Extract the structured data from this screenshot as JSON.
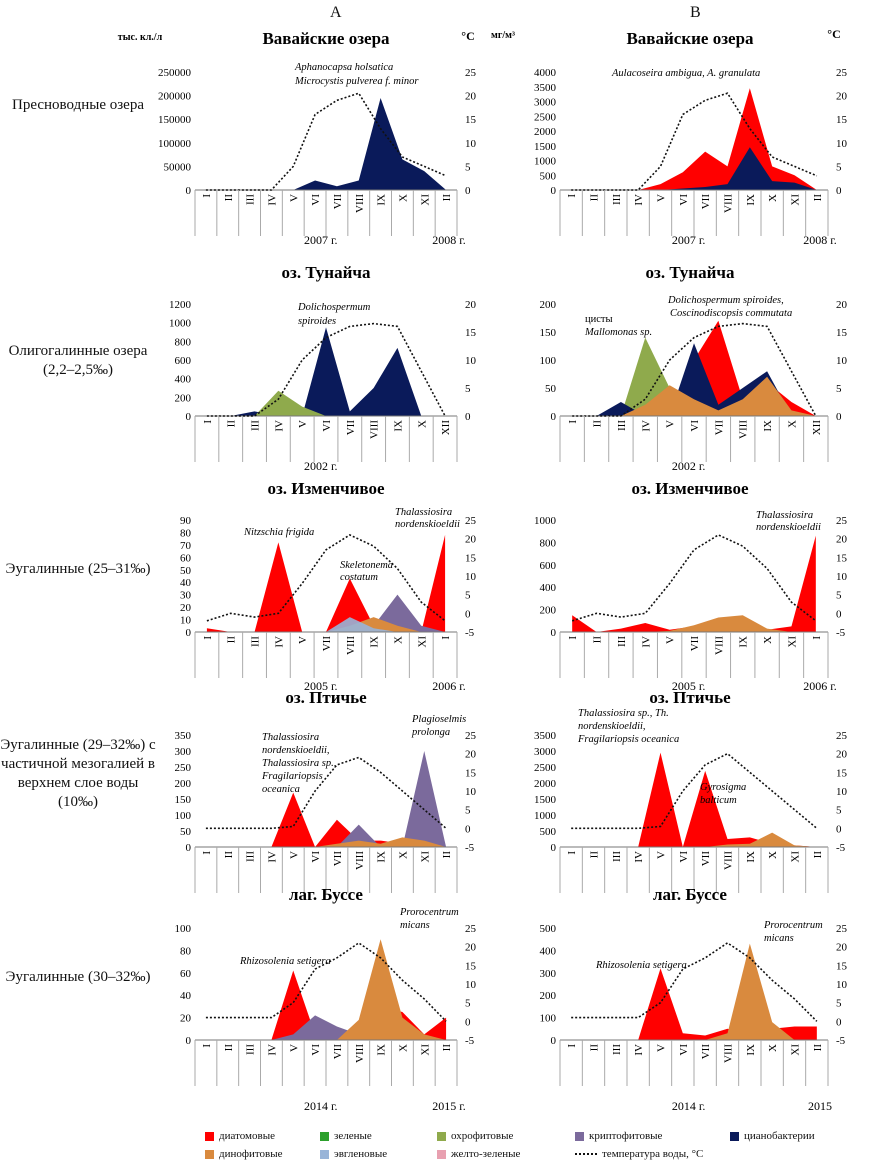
{
  "columns": [
    "A",
    "B"
  ],
  "units": {
    "left": "тыс. кл./л",
    "right": "мг/м³",
    "temp": "°C"
  },
  "row_labels": [
    "Пресноводные озера",
    "Олигогалинные озера (2,2–2,5‰)",
    "Эугалинные (25–31‰)",
    "Эугалинные (29–32‰) с частичной мезогалией в верхнем слое воды (10‰)",
    "Эугалинные (30–32‰)"
  ],
  "colors": {
    "diatoms": "#ff0000",
    "green": "#2ca02c",
    "ochrophytes": "#8faa4c",
    "cryptophytes": "#7b6a9c",
    "cyanobacteria": "#0a1a5a",
    "dinophytes": "#d98a3e",
    "euglenophytes": "#98b4d8",
    "yellowgreen": "#e8a0b0",
    "temperature": "#111111"
  },
  "legend": [
    {
      "key": "diatoms",
      "label": "диатомовые",
      "type": "box"
    },
    {
      "key": "green",
      "label": "зеленые",
      "type": "box"
    },
    {
      "key": "ochrophytes",
      "label": "охрофитовые",
      "type": "box"
    },
    {
      "key": "cryptophytes",
      "label": "криптофитовые",
      "type": "box"
    },
    {
      "key": "cyanobacteria",
      "label": "цианобактерии",
      "type": "box"
    },
    {
      "key": "dinophytes",
      "label": "динофитовые",
      "type": "box"
    },
    {
      "key": "euglenophytes",
      "label": "эвгленовые",
      "type": "box"
    },
    {
      "key": "yellowgreen",
      "label": "желто-зеленые",
      "type": "box"
    },
    {
      "key": "temperature",
      "label": "температура воды, °C",
      "type": "line"
    }
  ],
  "chart_data": [
    {
      "id": "A1",
      "type": "area",
      "title": "Вавайские озера",
      "ylabel": "тыс. кл./л",
      "y2label": "°C",
      "ylim": [
        0,
        250000
      ],
      "yticks": [
        0,
        50000,
        100000,
        150000,
        200000,
        250000
      ],
      "y2lim": [
        0,
        25
      ],
      "y2ticks": [
        0,
        5,
        10,
        15,
        20,
        25
      ],
      "categories": [
        "I",
        "II",
        "III",
        "IV",
        "V",
        "VI",
        "VII",
        "VIII",
        "IX",
        "X",
        "XI",
        "II"
      ],
      "year_labels": [
        "2007 г.",
        "2008 г."
      ],
      "series": [
        {
          "key": "cyanobacteria",
          "values": [
            0,
            0,
            0,
            0,
            0,
            20000,
            8000,
            20000,
            195000,
            65000,
            40000,
            0
          ]
        }
      ],
      "temperature": [
        0,
        0,
        0,
        0,
        5,
        16,
        19,
        20.5,
        13,
        7,
        5,
        3
      ],
      "annotations": [
        "Aphanocapsa holsatica",
        "Microcystis pulverea f. minor"
      ]
    },
    {
      "id": "B1",
      "type": "area",
      "title": "Вавайские озера",
      "ylabel": "мг/м³",
      "y2label": "°C",
      "ylim": [
        0,
        4000
      ],
      "yticks": [
        0,
        500,
        1000,
        1500,
        2000,
        2500,
        3000,
        3500,
        4000
      ],
      "y2lim": [
        0,
        25
      ],
      "y2ticks": [
        0,
        5,
        10,
        15,
        20,
        25
      ],
      "categories": [
        "I",
        "II",
        "III",
        "IV",
        "V",
        "VI",
        "VII",
        "VIII",
        "IX",
        "X",
        "XI",
        "II"
      ],
      "year_labels": [
        "2007 г.",
        "2008 г."
      ],
      "series": [
        {
          "key": "diatoms",
          "values": [
            0,
            0,
            0,
            0,
            200,
            600,
            1300,
            800,
            3450,
            800,
            500,
            0
          ]
        },
        {
          "key": "cyanobacteria",
          "values": [
            0,
            0,
            0,
            0,
            0,
            50,
            100,
            200,
            1450,
            300,
            250,
            0
          ]
        }
      ],
      "temperature": [
        0,
        0,
        0,
        0,
        5,
        16,
        19,
        20.5,
        13,
        7,
        5,
        3
      ],
      "annotations": [
        "Aulacoseira ambigua, A. granulata"
      ]
    },
    {
      "id": "A2",
      "type": "area",
      "title": "оз. Тунайча",
      "ylabel": "",
      "y2label": "",
      "ylim": [
        0,
        1200
      ],
      "yticks": [
        0,
        200,
        400,
        600,
        800,
        1000,
        1200
      ],
      "y2lim": [
        0,
        20
      ],
      "y2ticks": [
        0,
        5,
        10,
        15,
        20
      ],
      "categories": [
        "I",
        "II",
        "III",
        "IV",
        "V",
        "VI",
        "VII",
        "VIII",
        "IX",
        "X",
        "XII"
      ],
      "year_labels": [
        "2002 г."
      ],
      "series": [
        {
          "key": "cyanobacteria",
          "values": [
            0,
            0,
            50,
            0,
            0,
            950,
            50,
            300,
            730,
            0,
            0
          ]
        },
        {
          "key": "ochrophytes",
          "values": [
            0,
            0,
            0,
            270,
            100,
            0,
            0,
            0,
            0,
            0,
            0
          ]
        }
      ],
      "temperature": [
        0,
        0,
        0,
        3,
        10,
        14,
        16,
        16.5,
        16,
        8,
        0
      ],
      "annotations": [
        "Dolichospermum",
        "spiroides"
      ]
    },
    {
      "id": "B2",
      "type": "area",
      "title": "оз. Тунайча",
      "ylabel": "",
      "y2label": "",
      "ylim": [
        0,
        200
      ],
      "yticks": [
        0,
        50,
        100,
        150,
        200
      ],
      "y2lim": [
        0,
        20
      ],
      "y2ticks": [
        0,
        5,
        10,
        15,
        20
      ],
      "categories": [
        "I",
        "II",
        "III",
        "IV",
        "V",
        "VI",
        "VII",
        "VIII",
        "IX",
        "X",
        "XII"
      ],
      "year_labels": [
        "2002 г."
      ],
      "series": [
        {
          "key": "ochrophytes",
          "values": [
            0,
            0,
            0,
            140,
            50,
            0,
            0,
            0,
            0,
            0,
            0
          ]
        },
        {
          "key": "diatoms",
          "values": [
            0,
            0,
            0,
            0,
            0,
            100,
            170,
            30,
            60,
            25,
            0
          ]
        },
        {
          "key": "cyanobacteria",
          "values": [
            0,
            0,
            25,
            0,
            0,
            130,
            20,
            50,
            80,
            0,
            0
          ]
        },
        {
          "key": "dinophytes",
          "values": [
            0,
            0,
            0,
            20,
            55,
            30,
            10,
            30,
            70,
            10,
            0
          ]
        }
      ],
      "temperature": [
        0,
        0,
        0,
        3,
        10,
        14,
        16,
        16.5,
        16,
        8,
        0
      ],
      "annotations": [
        "цисты",
        "Mallomonas sp.",
        "Dolichospermum spiroides,",
        "Coscinodiscopsis commutata"
      ]
    },
    {
      "id": "A3",
      "type": "area",
      "title": "оз. Изменчивое",
      "ylabel": "",
      "y2label": "",
      "ylim": [
        0,
        90
      ],
      "yticks": [
        0,
        10,
        20,
        30,
        40,
        50,
        60,
        70,
        80,
        90
      ],
      "y2lim": [
        -5,
        25
      ],
      "y2ticks": [
        -5,
        0,
        5,
        10,
        15,
        20,
        25
      ],
      "categories": [
        "I",
        "II",
        "III",
        "IV",
        "V",
        "VII",
        "VIII",
        "IX",
        "X",
        "XI",
        "I"
      ],
      "year_labels": [
        "2005 г.",
        "2006 г."
      ],
      "series": [
        {
          "key": "diatoms",
          "values": [
            3,
            0,
            0,
            72,
            0,
            0,
            43,
            5,
            0,
            0,
            78
          ]
        },
        {
          "key": "cryptophytes",
          "values": [
            0,
            0,
            0,
            0,
            0,
            0,
            3,
            5,
            30,
            5,
            0
          ]
        },
        {
          "key": "dinophytes",
          "values": [
            0,
            0,
            0,
            0,
            0,
            0,
            5,
            12,
            5,
            0,
            0
          ]
        },
        {
          "key": "euglenophytes",
          "values": [
            0,
            0,
            0,
            0,
            0,
            0,
            12,
            3,
            0,
            0,
            0
          ]
        }
      ],
      "temperature": [
        -2,
        0,
        -1,
        0,
        8,
        17,
        21,
        18,
        12,
        3,
        -2
      ],
      "annotations": [
        "Nitzschia frigida",
        "Skeletonema",
        "costatum",
        "Thalassiosira",
        "nordenskioeldii"
      ]
    },
    {
      "id": "B3",
      "type": "area",
      "title": "оз. Изменчивое",
      "ylabel": "",
      "y2label": "",
      "ylim": [
        0,
        1000
      ],
      "yticks": [
        0,
        200,
        400,
        600,
        800,
        1000
      ],
      "y2lim": [
        -5,
        25
      ],
      "y2ticks": [
        -5,
        0,
        5,
        10,
        15,
        20,
        25
      ],
      "categories": [
        "I",
        "II",
        "III",
        "IV",
        "V",
        "VII",
        "VIII",
        "IX",
        "X",
        "XI",
        "I"
      ],
      "year_labels": [
        "2005 г.",
        "2006 г."
      ],
      "series": [
        {
          "key": "diatoms",
          "values": [
            150,
            0,
            30,
            80,
            20,
            50,
            100,
            80,
            20,
            50,
            860
          ]
        },
        {
          "key": "dinophytes",
          "values": [
            0,
            0,
            0,
            0,
            10,
            60,
            130,
            150,
            30,
            0,
            0
          ]
        }
      ],
      "temperature": [
        -2,
        0,
        -1,
        0,
        8,
        17,
        21,
        18,
        12,
        3,
        -2
      ],
      "annotations": [
        "Thalassiosira",
        "nordenskioeldii"
      ]
    },
    {
      "id": "A4",
      "type": "area",
      "title": "оз. Птичье",
      "ylabel": "",
      "y2label": "",
      "ylim": [
        0,
        350
      ],
      "yticks": [
        0,
        50,
        100,
        150,
        200,
        250,
        300,
        350
      ],
      "y2lim": [
        -5,
        25
      ],
      "y2ticks": [
        -5,
        0,
        5,
        10,
        15,
        20,
        25
      ],
      "categories": [
        "I",
        "II",
        "III",
        "IV",
        "V",
        "VI",
        "VII",
        "VIII",
        "IX",
        "X",
        "XI",
        "II"
      ],
      "year_labels": [],
      "series": [
        {
          "key": "diatoms",
          "values": [
            0,
            0,
            0,
            0,
            170,
            0,
            85,
            20,
            20,
            10,
            10,
            0
          ]
        },
        {
          "key": "cryptophytes",
          "values": [
            0,
            0,
            0,
            0,
            0,
            0,
            0,
            70,
            0,
            0,
            300,
            0
          ]
        },
        {
          "key": "dinophytes",
          "values": [
            0,
            0,
            0,
            0,
            0,
            0,
            10,
            20,
            10,
            30,
            20,
            0
          ]
        }
      ],
      "temperature": [
        0,
        0,
        0,
        0,
        0.5,
        10,
        17,
        19,
        15,
        10,
        5,
        0
      ],
      "annotations": [
        "Thalassiosira",
        "nordenskioeldii,",
        "Thalassiosira sp.,",
        "Fragilariopsis",
        "oceanica",
        "Plagioselmis",
        "prolonga"
      ]
    },
    {
      "id": "B4",
      "type": "area",
      "title": "оз. Птичье",
      "ylabel": "",
      "y2label": "",
      "ylim": [
        0,
        3500
      ],
      "yticks": [
        0,
        500,
        1000,
        1500,
        2000,
        2500,
        3000,
        3500
      ],
      "y2lim": [
        -5,
        25
      ],
      "y2ticks": [
        -5,
        0,
        5,
        10,
        15,
        20,
        25
      ],
      "categories": [
        "I",
        "II",
        "III",
        "IV",
        "V",
        "VI",
        "VII",
        "VIII",
        "IX",
        "X",
        "XI",
        "II"
      ],
      "year_labels": [],
      "series": [
        {
          "key": "diatoms",
          "values": [
            0,
            0,
            0,
            0,
            2950,
            0,
            2380,
            250,
            300,
            100,
            50,
            0
          ]
        },
        {
          "key": "dinophytes",
          "values": [
            0,
            0,
            0,
            0,
            0,
            0,
            0,
            80,
            100,
            450,
            50,
            0
          ]
        }
      ],
      "temperature": [
        0,
        0,
        0,
        0,
        0.5,
        10,
        17,
        20,
        15,
        10,
        5,
        0
      ],
      "annotations": [
        "Thalassiosira sp., Th.",
        "nordenskioeldii,",
        "Fragilariopsis oceanica",
        "Gyrosigma",
        "balticum"
      ]
    },
    {
      "id": "A5",
      "type": "area",
      "title": "лаг. Буссе",
      "ylabel": "",
      "y2label": "",
      "ylim": [
        0,
        100
      ],
      "yticks": [
        0,
        20,
        40,
        60,
        80,
        100
      ],
      "y2lim": [
        -5,
        25
      ],
      "y2ticks": [
        -5,
        0,
        5,
        10,
        15,
        20,
        25
      ],
      "categories": [
        "I",
        "II",
        "III",
        "IV",
        "V",
        "VI",
        "VII",
        "VIII",
        "IX",
        "X",
        "XI",
        "II"
      ],
      "year_labels": [
        "2014 г.",
        "2015 г."
      ],
      "series": [
        {
          "key": "diatoms",
          "values": [
            0,
            0,
            0,
            0,
            62,
            5,
            5,
            5,
            30,
            25,
            5,
            20
          ]
        },
        {
          "key": "cryptophytes",
          "values": [
            0,
            0,
            0,
            0,
            5,
            22,
            12,
            5,
            0,
            0,
            0,
            0
          ]
        },
        {
          "key": "dinophytes",
          "values": [
            0,
            0,
            0,
            0,
            0,
            0,
            0,
            18,
            90,
            20,
            5,
            0
          ]
        }
      ],
      "temperature": [
        1,
        1,
        1,
        1,
        5,
        14,
        17,
        21,
        17,
        11,
        6,
        0
      ],
      "annotations": [
        "Rhizosolenia setigera",
        "Prorocentrum",
        "micans"
      ]
    },
    {
      "id": "B5",
      "type": "area",
      "title": "лаг. Буссе",
      "ylabel": "",
      "y2label": "",
      "ylim": [
        0,
        500
      ],
      "yticks": [
        0,
        100,
        200,
        300,
        400,
        500
      ],
      "y2lim": [
        -5,
        25
      ],
      "y2ticks": [
        -5,
        0,
        5,
        10,
        15,
        20,
        25
      ],
      "categories": [
        "I",
        "II",
        "III",
        "IV",
        "V",
        "VI",
        "VII",
        "VIII",
        "IX",
        "X",
        "XI",
        "II"
      ],
      "year_labels": [
        "2014 г.",
        "2015"
      ],
      "series": [
        {
          "key": "diatoms",
          "values": [
            0,
            0,
            0,
            0,
            320,
            30,
            20,
            50,
            20,
            50,
            60,
            60
          ]
        },
        {
          "key": "dinophytes",
          "values": [
            0,
            0,
            0,
            0,
            0,
            0,
            0,
            30,
            430,
            80,
            0,
            0
          ]
        }
      ],
      "temperature": [
        1,
        1,
        1,
        1,
        5,
        14,
        17,
        21,
        17,
        11,
        6,
        0
      ],
      "annotations": [
        "Rhizosolenia setigera",
        "Prorocentrum",
        "micans"
      ]
    }
  ]
}
